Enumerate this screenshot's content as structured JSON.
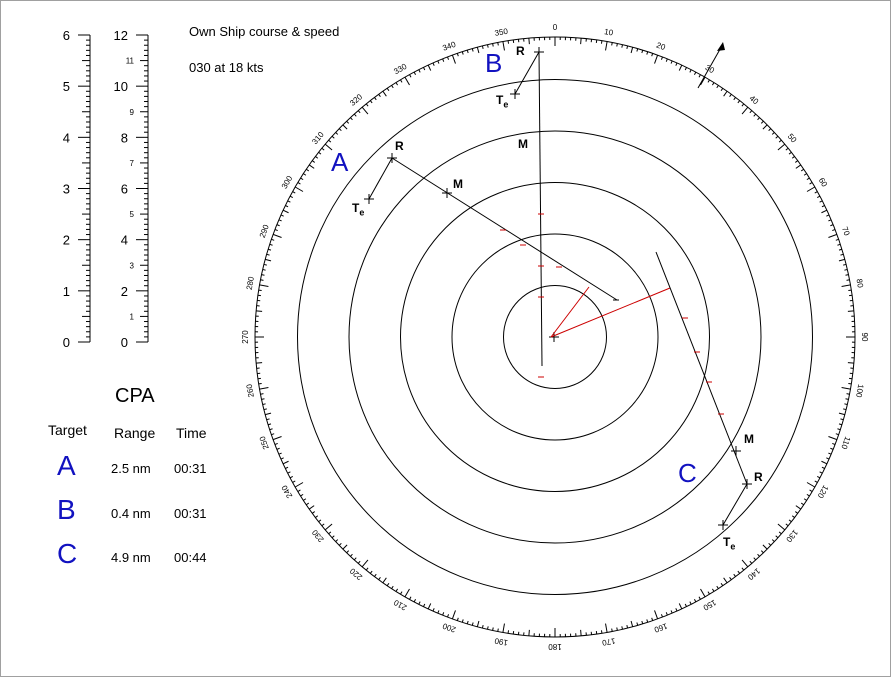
{
  "own_ship": {
    "title": "Own Ship course & speed",
    "value": "030 at 18 kts"
  },
  "scales": {
    "left_major": [
      "0",
      "1",
      "2",
      "3",
      "4",
      "5",
      "6"
    ],
    "right_major": [
      "0",
      "2",
      "4",
      "6",
      "8",
      "10",
      "12"
    ],
    "right_minor": [
      "1",
      "3",
      "5",
      "7",
      "9",
      "11"
    ]
  },
  "cpa": {
    "title": "CPA",
    "headers": {
      "target": "Target",
      "range": "Range",
      "time": "Time"
    },
    "rows": [
      {
        "target": "A",
        "range": "2.5 nm",
        "time": "00:31"
      },
      {
        "target": "B",
        "range": "0.4 nm",
        "time": "00:31"
      },
      {
        "target": "C",
        "range": "4.9 nm",
        "time": "00:44"
      }
    ]
  },
  "radar": {
    "bearing_labels": [
      "0",
      "10",
      "20",
      "30",
      "40",
      "50",
      "60",
      "70",
      "80",
      "90",
      "100",
      "110",
      "120",
      "130",
      "140",
      "150",
      "160",
      "170",
      "180",
      "190",
      "200",
      "210",
      "220",
      "230",
      "240",
      "250",
      "260",
      "270",
      "280",
      "290",
      "300",
      "310",
      "320",
      "330",
      "340",
      "350"
    ],
    "range_rings": 5,
    "targets": [
      {
        "id": "A",
        "label": "A",
        "r_label": "R",
        "m_label": "M",
        "te_label": "T",
        "te_sub": "e"
      },
      {
        "id": "B",
        "label": "B",
        "r_label": "R",
        "m_label": "M",
        "te_label": "T",
        "te_sub": "e"
      },
      {
        "id": "C",
        "label": "C",
        "r_label": "R",
        "m_label": "M",
        "te_label": "T",
        "te_sub": "e"
      }
    ]
  },
  "colors": {
    "target_letter": "#1212c0",
    "vector": "#cc0000",
    "ink": "#000000"
  }
}
